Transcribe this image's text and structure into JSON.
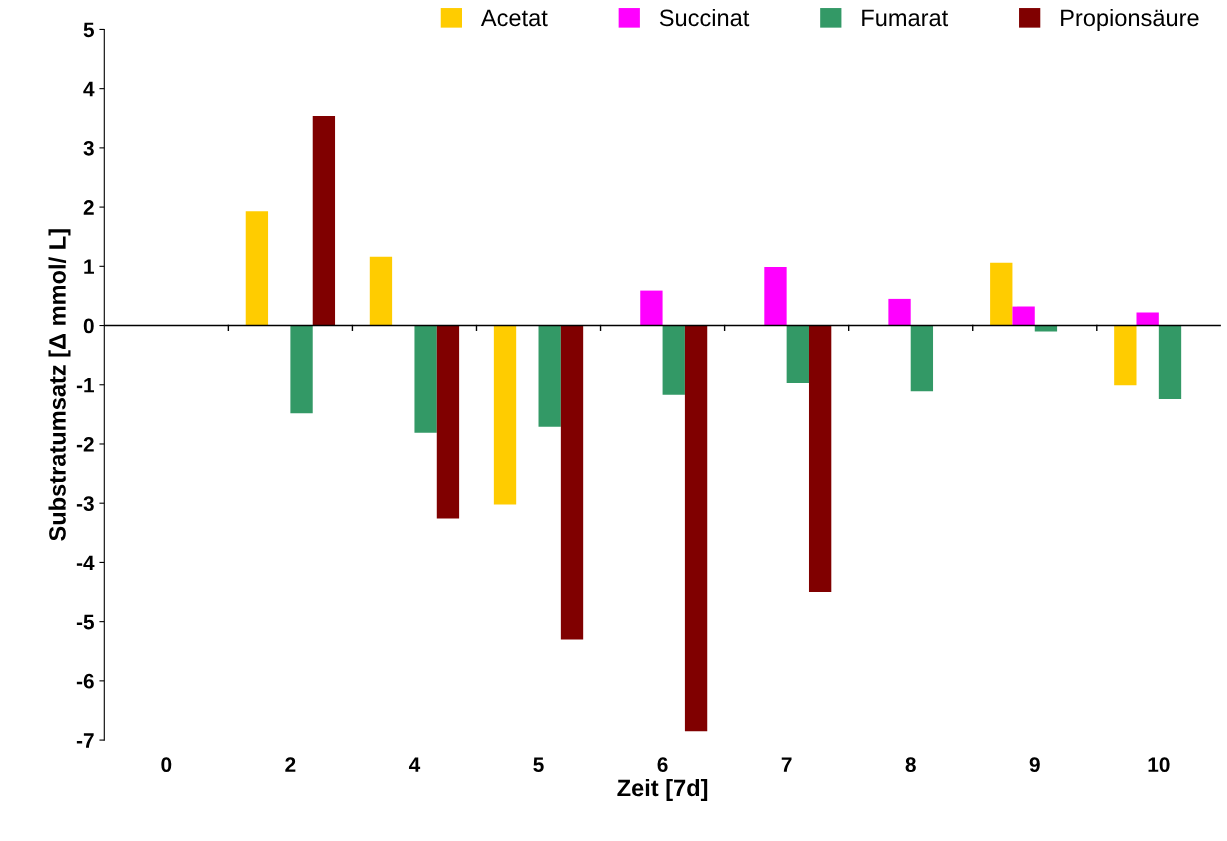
{
  "chart_data": {
    "type": "bar",
    "xlabel": "Zeit [7d]",
    "ylabel": "Substratumsatz [Δ mmol/ L]",
    "categories": [
      "0",
      "2",
      "4",
      "5",
      "6",
      "7",
      "8",
      "9",
      "10"
    ],
    "series": [
      {
        "name": "Acetat",
        "color": "#ffcc00",
        "values": [
          null,
          1.93,
          1.16,
          -3.02,
          null,
          null,
          null,
          1.06,
          -1.01
        ]
      },
      {
        "name": "Succinat",
        "color": "#ff00ff",
        "values": [
          null,
          null,
          null,
          null,
          0.59,
          0.99,
          0.45,
          0.32,
          0.22
        ]
      },
      {
        "name": "Fumarat",
        "color": "#339966",
        "values": [
          null,
          -1.48,
          -1.81,
          -1.71,
          -1.17,
          -0.97,
          -1.11,
          -0.1,
          -1.24
        ]
      },
      {
        "name": "Propionsäure",
        "color": "#800000",
        "values": [
          null,
          3.54,
          -3.26,
          -5.3,
          -6.85,
          -4.5,
          null,
          null,
          null
        ]
      }
    ],
    "ylim": [
      -7,
      5
    ],
    "yticks": [
      -7,
      -6,
      -5,
      -4,
      -3,
      -2,
      -1,
      0,
      1,
      2,
      3,
      4,
      5
    ],
    "legend": "top right"
  }
}
